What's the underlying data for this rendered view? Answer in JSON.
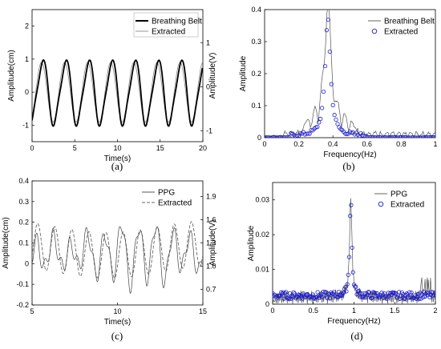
{
  "chart_data": [
    {
      "type": "line",
      "panel": "a",
      "caption": "(a)",
      "xlabel": "Time(s)",
      "ylabel": "Amplitude(cm)",
      "ylabel_right": "Amplitude(V)",
      "xlim": [
        0,
        20
      ],
      "ylim": [
        -1.5,
        2.5
      ],
      "ylim_right": [
        -1.25,
        1.75
      ],
      "xticks": [
        "0",
        "5",
        "10",
        "15",
        "20"
      ],
      "yticks": [
        "-1",
        "0",
        "1",
        "2"
      ],
      "yticks_right": [
        "-1",
        "0",
        "1"
      ],
      "legend_position": "top-right",
      "series": [
        {
          "name": "Breathing Belt",
          "color": "#000000",
          "style": "solid-thick",
          "signal": {
            "freq_hz": 0.37,
            "amplitude": 1.0,
            "period_s": 2.7,
            "range": [
              0,
              20
            ]
          }
        },
        {
          "name": "Extracted",
          "color": "#888888",
          "style": "solid-thin",
          "signal": {
            "freq_hz": 0.37,
            "amplitude": 0.95,
            "period_s": 2.7,
            "range": [
              0,
              20
            ]
          }
        }
      ]
    },
    {
      "type": "line",
      "panel": "b",
      "caption": "(b)",
      "xlabel": "Frequency(Hz)",
      "ylabel": "Amplitude",
      "xlim": [
        0,
        1
      ],
      "ylim": [
        0,
        0.4
      ],
      "xticks": [
        "0",
        "0.2",
        "0.4",
        "0.6",
        "0.8",
        "1"
      ],
      "yticks": [
        "0",
        "0.1",
        "0.2",
        "0.3",
        "0.4"
      ],
      "legend_position": "top-right",
      "peak": {
        "x": 0.37,
        "y": 0.38
      },
      "series": [
        {
          "name": "Breathing Belt",
          "color": "#555555",
          "style": "line"
        },
        {
          "name": "Extracted",
          "color": "#1a1acc",
          "style": "circle-markers"
        }
      ]
    },
    {
      "type": "line",
      "panel": "c",
      "caption": "(c)",
      "xlabel": "Time(s)",
      "ylabel": "Amplitude(cm)",
      "ylabel_right": "Amplitude(V)",
      "xlim": [
        5,
        15
      ],
      "ylim": [
        -0.2,
        0.4
      ],
      "ylim_right": [
        0.5,
        2.1
      ],
      "xticks": [
        "5",
        "10",
        "15"
      ],
      "yticks": [
        "-0.2",
        "-0.1",
        "0",
        "0.1",
        "0.2",
        "0.3",
        "0.4"
      ],
      "yticks_right": [
        "0.7",
        "1.0",
        "1.3",
        "1.6",
        "1.9"
      ],
      "legend_position": "top-right",
      "series": [
        {
          "name": "PPG",
          "color": "#444444",
          "style": "solid-thin",
          "signal": {
            "freq_hz": 1.0,
            "amplitude": 0.12,
            "range": [
              5,
              15
            ]
          }
        },
        {
          "name": "Extracted",
          "color": "#666666",
          "style": "dashed",
          "signal": {
            "freq_hz": 1.0,
            "amplitude": 0.11,
            "range": [
              5,
              15
            ]
          }
        }
      ]
    },
    {
      "type": "line",
      "panel": "d",
      "caption": "(d)",
      "xlabel": "Frequency(Hz)",
      "ylabel": "Amplitude",
      "xlim": [
        0,
        2
      ],
      "ylim": [
        0,
        0.035
      ],
      "xticks": [
        "0",
        "0.5",
        "1",
        "1.5",
        "2"
      ],
      "yticks": [
        "0",
        "0.01",
        "0.02",
        "0.03"
      ],
      "legend_position": "top-right",
      "peak": {
        "x": 0.96,
        "y": 0.029
      },
      "series": [
        {
          "name": "PPG",
          "color": "#555555",
          "style": "line"
        },
        {
          "name": "Extracted",
          "color": "#1a1acc",
          "style": "circle-markers"
        }
      ]
    }
  ]
}
